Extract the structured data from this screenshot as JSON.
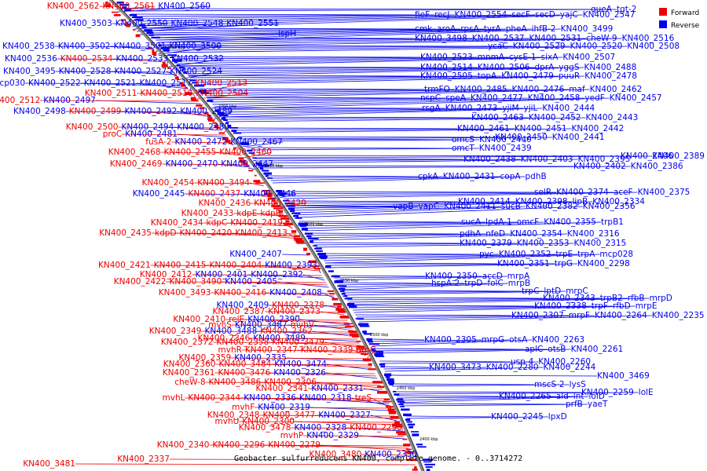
{
  "legend": [
    {
      "label": "Forward",
      "color": "#ee0000"
    },
    {
      "label": "Reverse",
      "color": "#0000ee"
    }
  ],
  "caption": "Geobacter sulfurreducens KN400, complete genome. - 0..3714272",
  "ticks": [
    "2750 kbp",
    "2700 kbp",
    "2650 kbp",
    "2600 kbp",
    "2550 kbp",
    "2500 kbp",
    "2450 kbp",
    "2400 kbp"
  ],
  "colors": {
    "forward": "#ee0000",
    "reverse": "#0000ee",
    "backbone": "#888888"
  },
  "left_labels": [
    {
      "t": "KN400_2562",
      "s": "f"
    },
    {
      "t": "KN400_2561",
      "s": "f"
    },
    {
      "t": "KN400_2560",
      "s": "r"
    },
    {
      "t": "KN400_3503",
      "s": "r"
    },
    {
      "t": "KN400_2550",
      "s": "r"
    },
    {
      "t": "KN400_2548",
      "s": "r"
    },
    {
      "t": "KN400_2551",
      "s": "r"
    },
    {
      "t": "ispH",
      "s": "r"
    },
    {
      "t": "KN400_2538",
      "s": "r"
    },
    {
      "t": "KN400_3502",
      "s": "r"
    },
    {
      "t": "KN400_3501",
      "s": "r"
    },
    {
      "t": "KN400_3500",
      "s": "r"
    },
    {
      "t": "KN400_2536",
      "s": "r"
    },
    {
      "t": "KN400_2534",
      "s": "f"
    },
    {
      "t": "KN400_2533",
      "s": "r"
    },
    {
      "t": "KN400_2532",
      "s": "r"
    },
    {
      "t": "KN400_3495",
      "s": "r"
    },
    {
      "t": "KN400_2528",
      "s": "r"
    },
    {
      "t": "KN400_2527",
      "s": "r"
    },
    {
      "t": "KN400_2524",
      "s": "r"
    },
    {
      "t": "mcp030",
      "s": "r"
    },
    {
      "t": "KN400_2522",
      "s": "r"
    },
    {
      "t": "KN400_2521",
      "s": "r"
    },
    {
      "t": "KN400_2517",
      "s": "r"
    },
    {
      "t": "KN400_2513",
      "s": "f"
    },
    {
      "t": "KN400_2511",
      "s": "f"
    },
    {
      "t": "KN400_2510",
      "s": "f"
    },
    {
      "t": "KN400_2504",
      "s": "f"
    },
    {
      "t": "KN400_2512",
      "s": "f"
    },
    {
      "t": "KN400_2497",
      "s": "r"
    },
    {
      "t": "KN400_2498",
      "s": "r"
    },
    {
      "t": "KN400_2499",
      "s": "f"
    },
    {
      "t": "KN400_2492",
      "s": "r"
    },
    {
      "t": "KN400_2489",
      "s": "r"
    },
    {
      "t": "KN400_2500",
      "s": "f"
    },
    {
      "t": "KN400_2494",
      "s": "r"
    },
    {
      "t": "KN400_2480",
      "s": "r"
    },
    {
      "t": "proC",
      "s": "f"
    },
    {
      "t": "KN400_2481",
      "s": "r"
    },
    {
      "t": "fusA-2",
      "s": "f"
    },
    {
      "t": "KN400_2472",
      "s": "r"
    },
    {
      "t": "KN400_2467",
      "s": "r"
    },
    {
      "t": "KN400_2468",
      "s": "f"
    },
    {
      "t": "KN400_2455",
      "s": "f"
    },
    {
      "t": "KN400_2460",
      "s": "f"
    },
    {
      "t": "KN400_2469",
      "s": "f"
    },
    {
      "t": "KN400_2470",
      "s": "r"
    },
    {
      "t": "KN400_2447",
      "s": "r"
    },
    {
      "t": "KN400_2454",
      "s": "f"
    },
    {
      "t": "KN400_3494",
      "s": "f"
    },
    {
      "t": "KN400_2445",
      "s": "r"
    },
    {
      "t": "KN400_2437",
      "s": "f"
    },
    {
      "t": "KN400_2446",
      "s": "r"
    },
    {
      "t": "KN400_2436",
      "s": "f"
    },
    {
      "t": "KN400_2429",
      "s": "f"
    },
    {
      "t": "KN400_2433",
      "s": "f"
    },
    {
      "t": "kdpE",
      "s": "f"
    },
    {
      "t": "kdpB",
      "s": "f"
    },
    {
      "t": "KN400_2434",
      "s": "f"
    },
    {
      "t": "kdpC",
      "s": "f"
    },
    {
      "t": "KN400_2419",
      "s": "f"
    },
    {
      "t": "KN400_2435",
      "s": "f"
    },
    {
      "t": "kdpD",
      "s": "f"
    },
    {
      "t": "KN400_2420",
      "s": "f"
    },
    {
      "t": "KN400_2413",
      "s": "f"
    },
    {
      "t": "KN400_2407",
      "s": "r"
    },
    {
      "t": "KN400_2421",
      "s": "f"
    },
    {
      "t": "KN400_2415",
      "s": "f"
    },
    {
      "t": "KN400_2404",
      "s": "f"
    },
    {
      "t": "KN400_2393",
      "s": "r"
    },
    {
      "t": "KN400_2412",
      "s": "f"
    },
    {
      "t": "KN400_2401",
      "s": "r"
    },
    {
      "t": "KN400_2392",
      "s": "r"
    },
    {
      "t": "KN400_2422",
      "s": "f"
    },
    {
      "t": "KN400_3490",
      "s": "f"
    },
    {
      "t": "KN400_2405",
      "s": "r"
    },
    {
      "t": "KN400_3493",
      "s": "f"
    },
    {
      "t": "KN400_2416",
      "s": "f"
    },
    {
      "t": "KN400_2408",
      "s": "r"
    },
    {
      "t": "KN400_2409",
      "s": "r"
    },
    {
      "t": "KN400_2378",
      "s": "f"
    },
    {
      "t": "KN400_2387",
      "s": "f"
    },
    {
      "t": "KN400_2373",
      "s": "f"
    },
    {
      "t": "KN400_2410",
      "s": "f"
    },
    {
      "t": "relE",
      "s": "f"
    },
    {
      "t": "KN400_2390",
      "s": "r"
    },
    {
      "t": "mvhS",
      "s": "f"
    },
    {
      "t": "KN400_3487",
      "s": "r"
    },
    {
      "t": "mvhV",
      "s": "f"
    },
    {
      "t": "KN400_2349",
      "s": "f"
    },
    {
      "t": "KN400_3488",
      "s": "r"
    },
    {
      "t": "KN400_2362",
      "s": "f"
    },
    {
      "t": "KN400_2346",
      "s": "f"
    },
    {
      "t": "KN400_3489",
      "s": "r"
    },
    {
      "t": "KN400_2372",
      "s": "f"
    },
    {
      "t": "KN400_2358",
      "s": "f"
    },
    {
      "t": "KN400_3479",
      "s": "f"
    },
    {
      "t": "mvhR",
      "s": "f"
    },
    {
      "t": "KN400_2347",
      "s": "f"
    },
    {
      "t": "KN400_2339",
      "s": "f"
    },
    {
      "t": "htpG",
      "s": "f"
    },
    {
      "t": "KN400_2359",
      "s": "f"
    },
    {
      "t": "KN400_2335",
      "s": "r"
    },
    {
      "t": "KN400_2360",
      "s": "f"
    },
    {
      "t": "KN400_3484",
      "s": "f"
    },
    {
      "t": "KN400_3474",
      "s": "r"
    },
    {
      "t": "KN400_2361",
      "s": "f"
    },
    {
      "t": "KN400_3476",
      "s": "f"
    },
    {
      "t": "KN400_2326",
      "s": "r"
    },
    {
      "t": "cheW-8",
      "s": "f"
    },
    {
      "t": "KN400_3486",
      "s": "f"
    },
    {
      "t": "KN400_2306",
      "s": "f"
    },
    {
      "t": "KN400_2341",
      "s": "f"
    },
    {
      "t": "KN400_2331",
      "s": "r"
    },
    {
      "t": "mvhL",
      "s": "f"
    },
    {
      "t": "KN400_2344",
      "s": "f"
    },
    {
      "t": "KN400_2336",
      "s": "r"
    },
    {
      "t": "KN400_2318",
      "s": "r"
    },
    {
      "t": "treS",
      "s": "f"
    },
    {
      "t": "mvhF",
      "s": "f"
    },
    {
      "t": "KN400_2319",
      "s": "r"
    },
    {
      "t": "KN400_2348",
      "s": "f"
    },
    {
      "t": "KN400_3477",
      "s": "f"
    },
    {
      "t": "KN400_2327",
      "s": "r"
    },
    {
      "t": "mvhU",
      "s": "f"
    },
    {
      "t": "KN400_2300",
      "s": "f"
    },
    {
      "t": "KN400_3478",
      "s": "f"
    },
    {
      "t": "KN400_2328",
      "s": "r"
    },
    {
      "t": "KN400_2295",
      "s": "f"
    },
    {
      "t": "mvhP",
      "s": "f"
    },
    {
      "t": "KN400_2329",
      "s": "r"
    },
    {
      "t": "KN400_2340",
      "s": "f"
    },
    {
      "t": "KN400_2296",
      "s": "f"
    },
    {
      "t": "KN400_2279",
      "s": "f"
    },
    {
      "t": "KN400_3480",
      "s": "f"
    },
    {
      "t": "KN400_2330",
      "s": "r"
    },
    {
      "t": "KN400_2337",
      "s": "f"
    },
    {
      "t": "KN400_3481",
      "s": "f"
    }
  ],
  "right_labels": [
    "queA",
    "tgt-2",
    "fieF",
    "recJ",
    "KN400_2554",
    "secF",
    "secD",
    "yajC",
    "KN400_2547",
    "cmk",
    "aroA",
    "rpsA",
    "tyrA",
    "pheA",
    "ihfB-2",
    "KN400_3499",
    "KN400_3498",
    "KN400_2537",
    "KN400_2531",
    "cheW-9",
    "KN400_2516",
    "ycaC",
    "KN400_2529",
    "KN400_2520",
    "KN400_2508",
    "KN400_2523",
    "mnmA",
    "cysE-1",
    "sixA",
    "KN400_2507",
    "KN400_2514",
    "KN400_2506",
    "dprA",
    "yggS",
    "KN400_2488",
    "KN400_2505",
    "topA",
    "KN400_2479",
    "puuR",
    "KN400_2478",
    "trmFO",
    "KN400_2485",
    "KN400_2476",
    "maf",
    "KN400_2462",
    "nspC",
    "speA",
    "KN400_2477",
    "KN400_2458",
    "yedF",
    "KN400_2457",
    "rsgA",
    "KN400_2473",
    "yjiM",
    "yjiL",
    "KN400_2444",
    "KN400_2463",
    "KN400_2452",
    "KN400_2443",
    "KN400_2461",
    "KN400_2451",
    "KN400_2442",
    "KN400_2450",
    "KN400_2441",
    "omcS",
    "KN400_2440",
    "omcT",
    "KN400_2439",
    "KN400_2438",
    "KN400_2403",
    "KN400_2395",
    "KN400_2406",
    "KN400_2389",
    "KN400_2402",
    "KN400_2386",
    "cpkA",
    "KN400_2431",
    "copA",
    "pdhB",
    "selR",
    "KN400_2374",
    "aceF",
    "KN400_2375",
    "KN400_2414",
    "KN400_2398",
    "lipB",
    "KN400_2334",
    "vapB",
    "vapC",
    "KN400_2411",
    "sucB",
    "KN400_2382",
    "KN400_2356",
    "sucA",
    "lpdA-1",
    "omcF",
    "KN400_2355",
    "trpB1",
    "pdhA",
    "nfeD",
    "KN400_2354",
    "KN400_2316",
    "KN400_2379",
    "KN400_2353",
    "KN400_2315",
    "pyc",
    "KN400_2352",
    "trpE",
    "trpA",
    "mcp028",
    "KN400_2351",
    "trpG",
    "KN400_2298",
    "KN400_2350",
    "accD",
    "mrpA",
    "hspA-2",
    "trpD",
    "folC",
    "mrpB",
    "trpC",
    "lptD",
    "mrpC",
    "KN400_2343",
    "trpB2",
    "rfbB",
    "mrpD",
    "KN400_2338",
    "trpF",
    "rfbD",
    "mrpE",
    "KN400_2307",
    "mrpF",
    "KN400_2264",
    "KN400_2235",
    "KN400_2305",
    "mrpG",
    "otsA",
    "KN400_2263",
    "aplC",
    "otsB",
    "KN400_2261",
    "usp-4",
    "KN400_2260",
    "KN400_3473",
    "KN400_2280",
    "KN400_2244",
    "KN400_3469",
    "mscS-2",
    "lysS",
    "KN400_2259",
    "lolE",
    "KN400_2265",
    "ald",
    "lnt",
    "lolD",
    "prfB",
    "yaeT",
    "KN400_2245",
    "lpxD"
  ]
}
